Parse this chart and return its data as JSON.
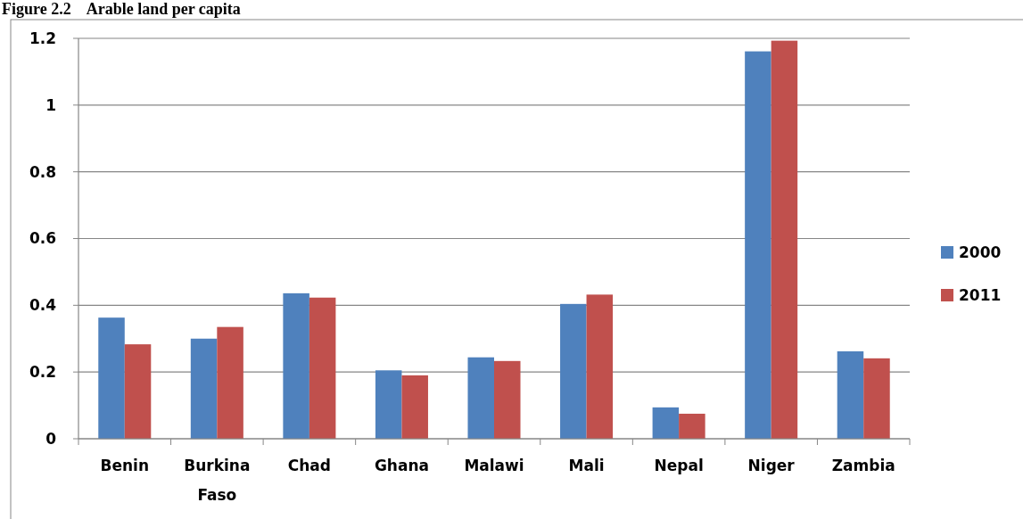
{
  "chart_data": {
    "type": "bar",
    "title": "Figure 2.2    Arable land per capita",
    "categories": [
      "Benin",
      "Burkina Faso",
      "Chad",
      "Ghana",
      "Malawi",
      "Mali",
      "Nepal",
      "Niger",
      "Zambia"
    ],
    "series": [
      {
        "name": "2000",
        "color": "#4f81bd",
        "values": [
          0.363,
          0.3,
          0.436,
          0.205,
          0.244,
          0.404,
          0.094,
          1.161,
          0.262
        ]
      },
      {
        "name": "2011",
        "color": "#c0504d",
        "values": [
          0.283,
          0.335,
          0.423,
          0.19,
          0.233,
          0.432,
          0.075,
          1.193,
          0.241
        ]
      }
    ],
    "ylim": [
      0,
      1.2
    ],
    "yticks": [
      0,
      0.2,
      0.4,
      0.6,
      0.8,
      1,
      1.2
    ],
    "grid": "y",
    "legend": "right"
  }
}
